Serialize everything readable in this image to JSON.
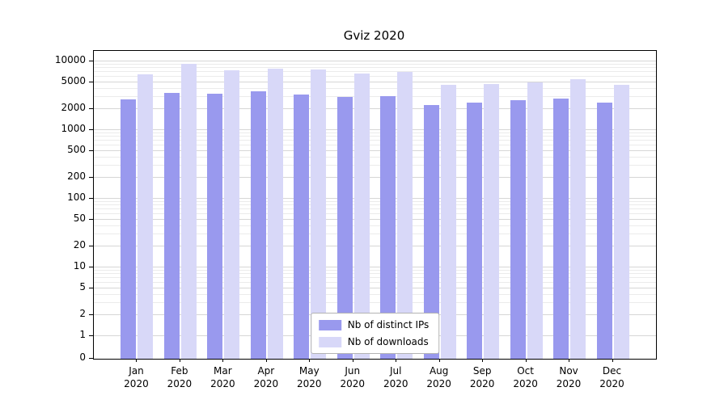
{
  "chart_data": {
    "type": "bar",
    "title": "Gviz 2020",
    "yscale": "symlog",
    "grid": true,
    "legend_position": "lower center",
    "categories": [
      "Jan 2020",
      "Feb 2020",
      "Mar 2020",
      "Apr 2020",
      "May 2020",
      "Jun 2020",
      "Jul 2020",
      "Aug 2020",
      "Sep 2020",
      "Oct 2020",
      "Nov 2020",
      "Dec 2020"
    ],
    "category_months": [
      "Jan",
      "Feb",
      "Mar",
      "Apr",
      "May",
      "Jun",
      "Jul",
      "Aug",
      "Sep",
      "Oct",
      "Nov",
      "Dec"
    ],
    "category_year": "2020",
    "series": [
      {
        "name": "Nb of distinct IPs",
        "color": "#9999ee",
        "values": [
          2800,
          3500,
          3400,
          3700,
          3300,
          3000,
          3100,
          2300,
          2500,
          2700,
          2900,
          2500
        ]
      },
      {
        "name": "Nb of downloads",
        "color": "#d8d8f8",
        "values": [
          6500,
          9200,
          7400,
          7800,
          7600,
          6600,
          7000,
          4500,
          4700,
          4900,
          5500,
          4600
        ]
      }
    ],
    "yticks": [
      0,
      1,
      2,
      5,
      10,
      20,
      50,
      100,
      200,
      500,
      1000,
      2000,
      5000,
      10000
    ],
    "ylim": [
      0,
      15000
    ],
    "xlabel": "",
    "ylabel": ""
  }
}
